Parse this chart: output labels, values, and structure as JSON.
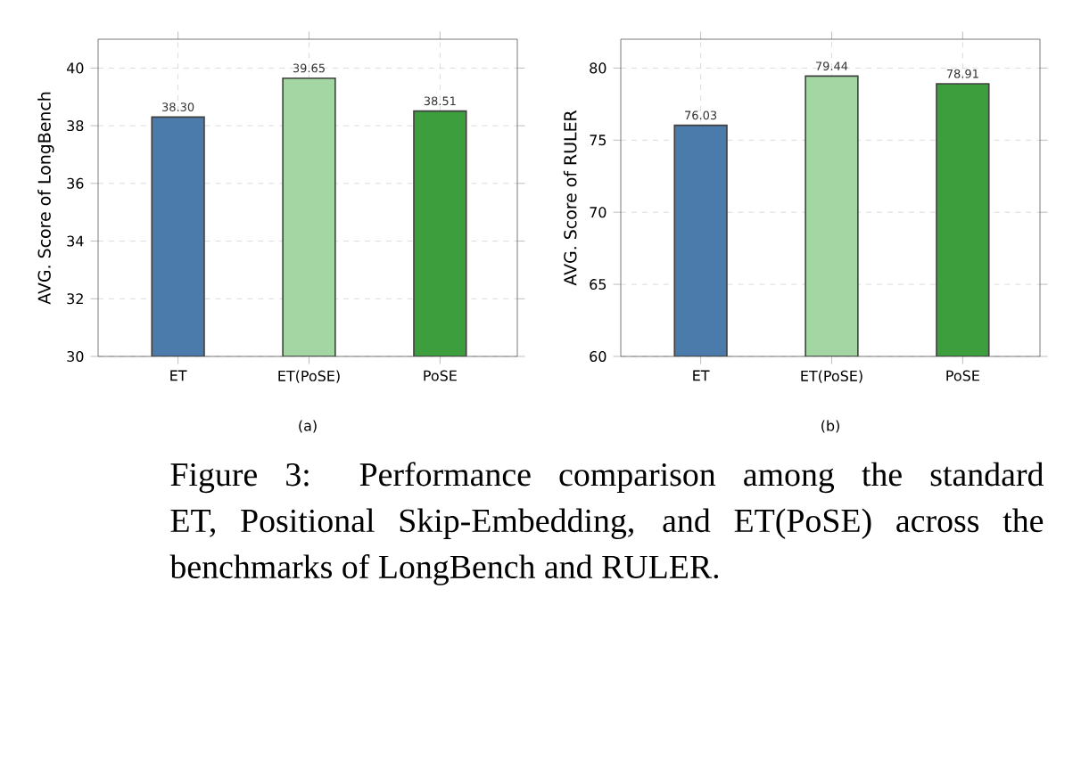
{
  "chart_data": [
    {
      "type": "bar",
      "categories": [
        "ET",
        "ET(PoSE)",
        "PoSE"
      ],
      "values": [
        38.3,
        39.65,
        38.51
      ],
      "colors": [
        "#4a7bab",
        "#a3d6a3",
        "#3d9e3d"
      ],
      "value_labels": [
        "38.30",
        "39.65",
        "38.51"
      ],
      "ylabel": "AVG. Score of LongBench",
      "xlabel": "(a)",
      "ylim": [
        30,
        41
      ],
      "yticks": [
        30,
        32,
        34,
        36,
        38,
        40
      ],
      "grid": true,
      "annotations": [
        "Figure 3: Performance comparison among the standard ET, Positional Skip-Embedding, and ET(PoSE) across the benchmarks of LongBench and RULER."
      ]
    },
    {
      "type": "bar",
      "categories": [
        "ET",
        "ET(PoSE)",
        "PoSE"
      ],
      "values": [
        76.03,
        79.44,
        78.91
      ],
      "colors": [
        "#4a7bab",
        "#a3d6a3",
        "#3d9e3d"
      ],
      "value_labels": [
        "76.03",
        "79.44",
        "78.91"
      ],
      "ylabel": "AVG. Score of RULER",
      "xlabel": "(b)",
      "ylim": [
        60,
        82
      ],
      "yticks": [
        60,
        65,
        70,
        75,
        80
      ],
      "grid": true
    }
  ]
}
